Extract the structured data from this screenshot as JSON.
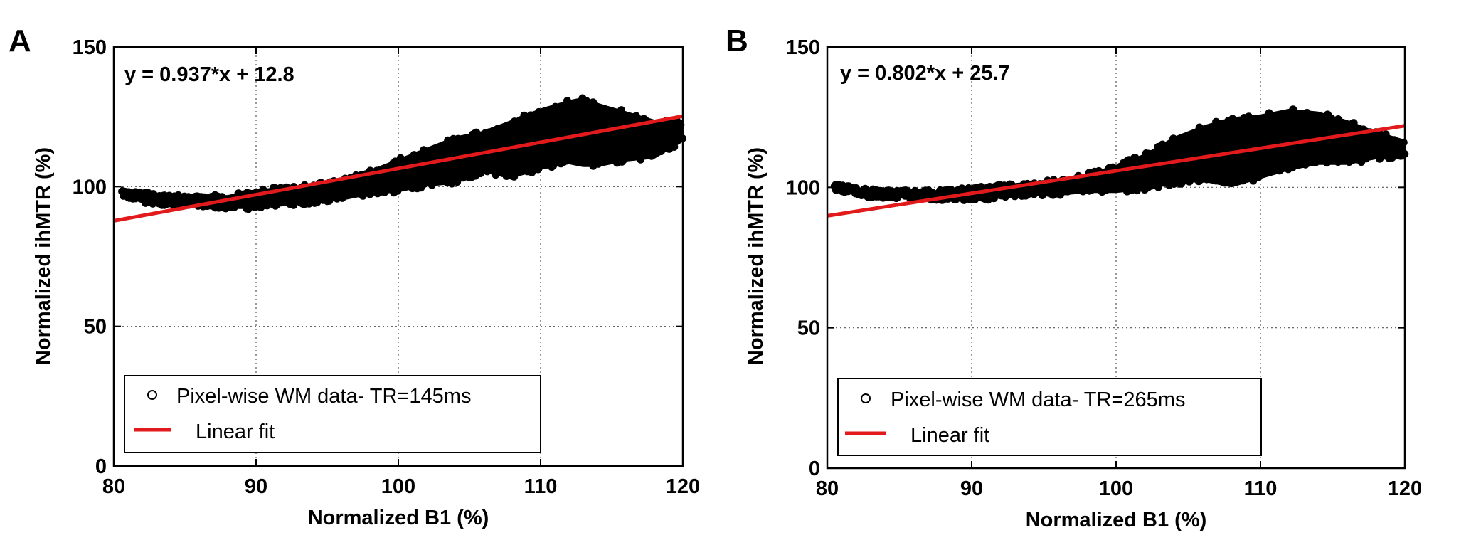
{
  "chart_data": [
    {
      "panel_label": "A",
      "type": "scatter",
      "title": "",
      "xlabel": "Normalized B1 (%)",
      "ylabel": "Normalized ihMTR (%)",
      "xlim": [
        80,
        120
      ],
      "ylim": [
        0,
        150
      ],
      "xticks": [
        80,
        90,
        100,
        110,
        120
      ],
      "yticks": [
        0,
        50,
        100,
        150
      ],
      "grid": true,
      "equation": "y = 0.937*x + 12.8",
      "legend_position": "bottom-left",
      "series": [
        {
          "name": "Pixel-wise WM data- TR=145ms",
          "marker": "circle",
          "color": "#000000",
          "x": [
            80.5,
            82,
            84,
            86,
            88,
            90,
            92,
            94,
            96,
            98,
            100,
            102,
            104,
            106,
            108,
            110,
            112,
            113,
            114,
            116,
            118,
            120
          ],
          "y_low": [
            97,
            94,
            93,
            93,
            92,
            92,
            93,
            94,
            95,
            97,
            98,
            100,
            101,
            105,
            103,
            106,
            108,
            107,
            107,
            109,
            110,
            116
          ],
          "y_high": [
            100,
            98,
            97,
            97,
            97,
            99,
            100,
            101,
            103,
            106,
            110,
            114,
            118,
            120,
            124,
            128,
            131,
            132,
            130,
            127,
            124,
            124
          ]
        },
        {
          "name": "Linear fit",
          "type": "line",
          "color": "#e31a1c",
          "slope": 0.937,
          "intercept": 12.8,
          "x": [
            80,
            120
          ]
        }
      ]
    },
    {
      "panel_label": "B",
      "type": "scatter",
      "title": "",
      "xlabel": "Normalized B1 (%)",
      "ylabel": "Normalized ihMTR (%)",
      "xlim": [
        80,
        120
      ],
      "ylim": [
        0,
        150
      ],
      "xticks": [
        80,
        90,
        100,
        110,
        120
      ],
      "yticks": [
        0,
        50,
        100,
        150
      ],
      "grid": true,
      "equation": "y = 0.802*x + 25.7",
      "legend_position": "bottom-left",
      "series": [
        {
          "name": "Pixel-wise WM data- TR=265ms",
          "marker": "circle",
          "color": "#000000",
          "x": [
            80.5,
            82,
            84,
            86,
            88,
            90,
            92,
            94,
            96,
            98,
            100,
            102,
            104,
            106,
            108,
            110,
            112,
            114,
            116,
            118,
            120
          ],
          "y_low": [
            99,
            97,
            96,
            96,
            95,
            95,
            96,
            97,
            97,
            98,
            98,
            99,
            101,
            102,
            100,
            103,
            106,
            108,
            108,
            110,
            111
          ],
          "y_high": [
            102,
            100,
            99,
            99,
            99,
            100,
            101,
            102,
            103,
            105,
            108,
            112,
            118,
            122,
            125,
            126,
            128,
            127,
            124,
            120,
            117
          ]
        },
        {
          "name": "Linear fit",
          "type": "line",
          "color": "#e31a1c",
          "slope": 0.802,
          "intercept": 25.7,
          "x": [
            80,
            120
          ]
        }
      ]
    }
  ]
}
